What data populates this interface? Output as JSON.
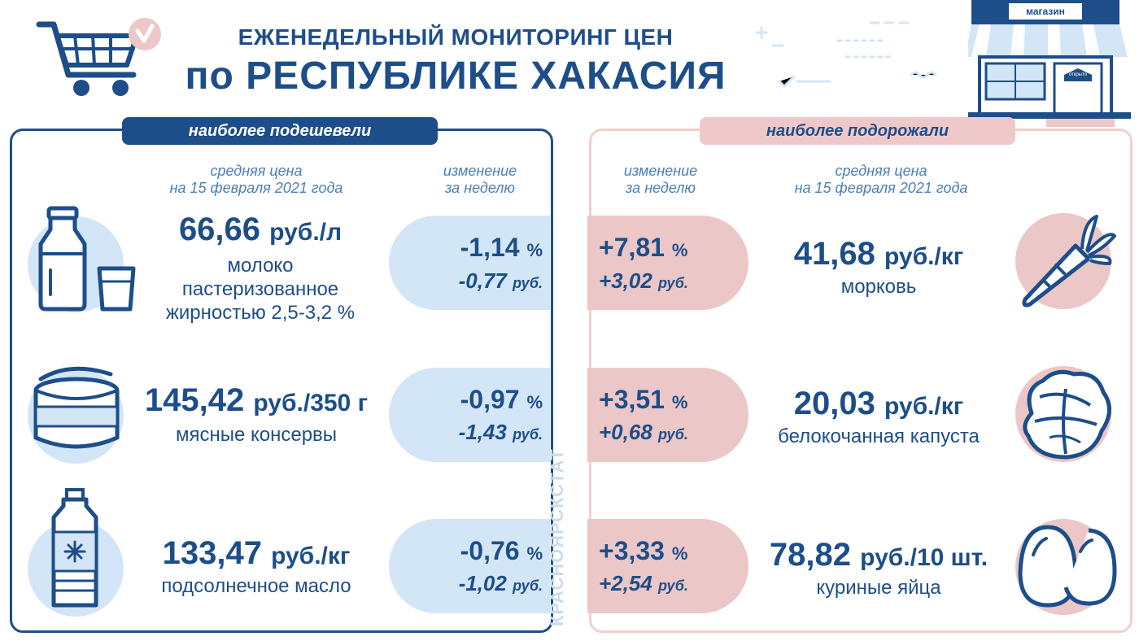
{
  "header": {
    "title_line1": "ЕЖЕНЕДЕЛЬНЫЙ МОНИТОРИНГ ЦЕН",
    "title_line2": "по РЕСПУБЛИКЕ ХАКАСИЯ",
    "shop_sign": "магазин",
    "shop_door_sign": "открыто"
  },
  "left": {
    "tab": "наиболее подешевели",
    "col_price": "средняя цена\nна 15 февраля 2021 года",
    "col_change": "изменение\nза неделю",
    "items": [
      {
        "price": "66,66",
        "unit": "руб./л",
        "name": "молоко\nпастеризованное\nжирностью 2,5-3,2 %",
        "pct": "-1,14",
        "pct_sign": "%",
        "rub": "-0,77",
        "rub_unit": "руб.",
        "icon": "milk-icon"
      },
      {
        "price": "145,42",
        "unit": "руб./350 г",
        "name": "мясные консервы",
        "pct": "-0,97",
        "pct_sign": "%",
        "rub": "-1,43",
        "rub_unit": "руб.",
        "icon": "canned-meat-icon"
      },
      {
        "price": "133,47",
        "unit": "руб./кг",
        "name": "подсолнечное масло",
        "pct": "-0,76",
        "pct_sign": "%",
        "rub": "-1,02",
        "rub_unit": "руб.",
        "icon": "oil-bottle-icon"
      }
    ]
  },
  "right": {
    "tab": "наиболее подорожали",
    "col_change": "изменение\nза неделю",
    "col_price": "средняя цена\nна 15 февраля 2021 года",
    "items": [
      {
        "price": "41,68",
        "unit": "руб./кг",
        "name": "морковь",
        "pct": "+7,81",
        "pct_sign": "%",
        "rub": "+3,02",
        "rub_unit": "руб.",
        "icon": "carrot-icon"
      },
      {
        "price": "20,03",
        "unit": "руб./кг",
        "name": "белокочанная капуста",
        "pct": "+3,51",
        "pct_sign": "%",
        "rub": "+0,68",
        "rub_unit": "руб.",
        "icon": "cabbage-icon"
      },
      {
        "price": "78,82",
        "unit": "руб./10 шт.",
        "name": "куриные яйца",
        "pct": "+3,33",
        "pct_sign": "%",
        "rub": "+2,54",
        "rub_unit": "руб.",
        "icon": "eggs-icon"
      }
    ]
  },
  "watermark": "КРАСНОЯРСКСТАТ",
  "colors": {
    "navy": "#1d4e89",
    "light_blue": "#d3e6f7",
    "pink": "#ecc7c8",
    "pink_border": "#f2cfd0"
  }
}
